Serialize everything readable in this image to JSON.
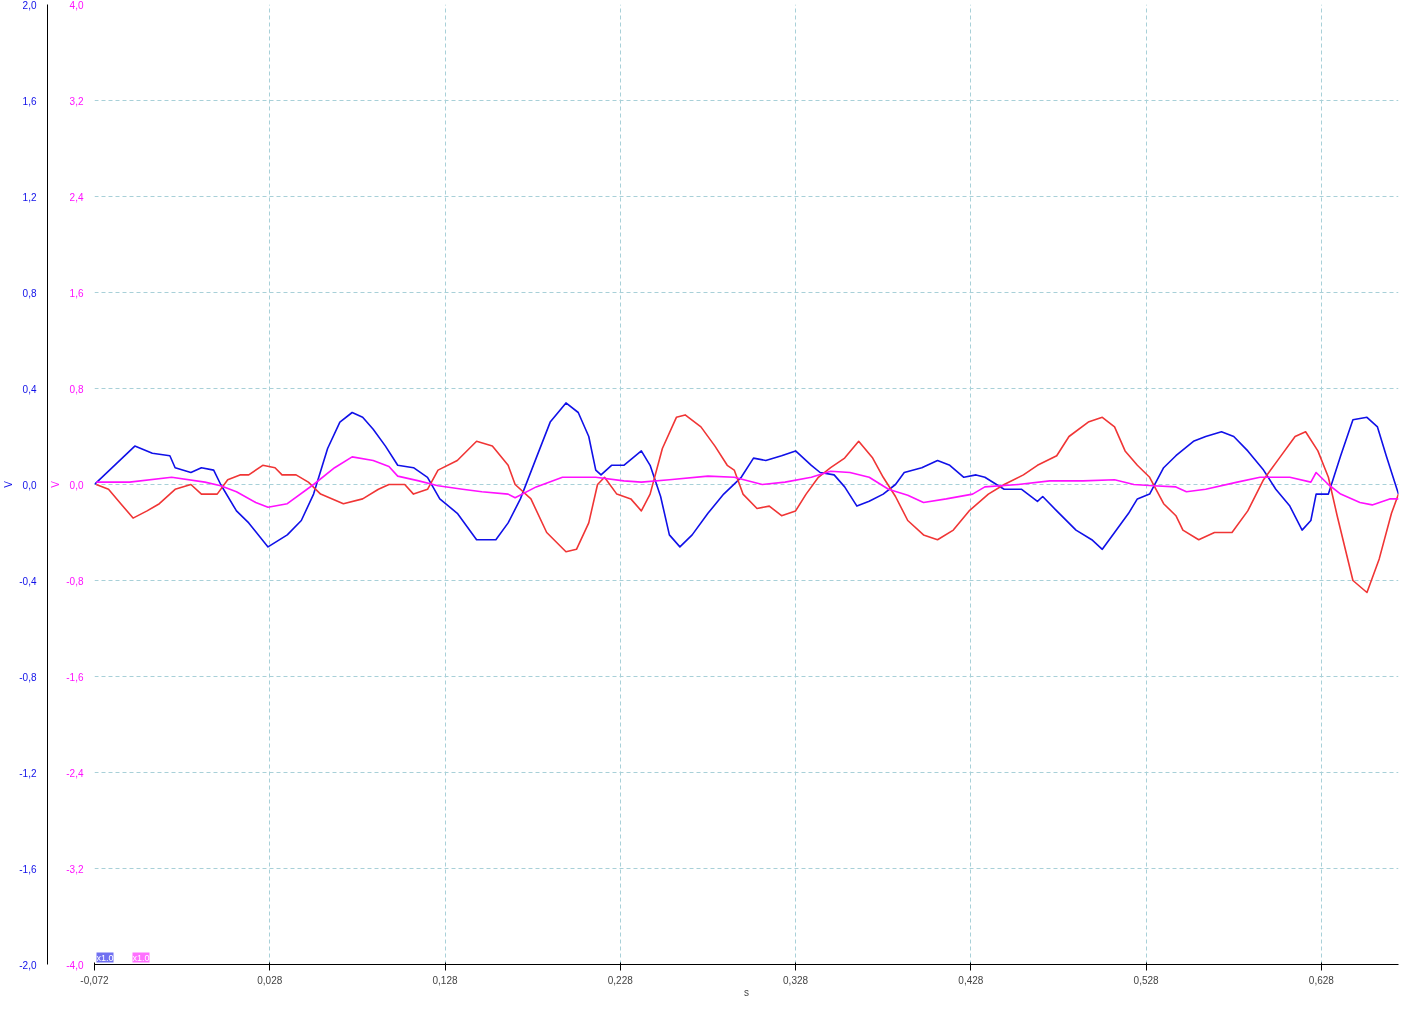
{
  "chart_data": {
    "type": "line",
    "xlabel": "s",
    "ylabel": "V",
    "y2label": "V",
    "grid": true,
    "line_style": "solid",
    "marker": "none",
    "xlim": [
      -0.072,
      0.672
    ],
    "xticks": [
      {
        "value": -0.072,
        "label": "-0,072"
      },
      {
        "value": 0.028,
        "label": "0,028"
      },
      {
        "value": 0.128,
        "label": "0,128"
      },
      {
        "value": 0.228,
        "label": "0,228"
      },
      {
        "value": 0.328,
        "label": "0,328"
      },
      {
        "value": 0.428,
        "label": "0,428"
      },
      {
        "value": 0.528,
        "label": "0,528"
      },
      {
        "value": 0.628,
        "label": "0,628"
      }
    ],
    "ylim": [
      -2.0,
      2.0
    ],
    "yticks": [
      {
        "value": -2.0,
        "label": "-2,0"
      },
      {
        "value": -1.6,
        "label": "-1,6"
      },
      {
        "value": -1.2,
        "label": "-1,2"
      },
      {
        "value": -0.8,
        "label": "-0,8"
      },
      {
        "value": -0.4,
        "label": "-0,4"
      },
      {
        "value": 0.0,
        "label": "0,0"
      },
      {
        "value": 0.4,
        "label": "0,4"
      },
      {
        "value": 0.8,
        "label": "0,8"
      },
      {
        "value": 1.2,
        "label": "1,2"
      },
      {
        "value": 1.6,
        "label": "1,6"
      },
      {
        "value": 2.0,
        "label": "2,0"
      }
    ],
    "y2lim": [
      -4.0,
      4.0
    ],
    "y2ticks": [
      {
        "value": -4.0,
        "label": "-4,0"
      },
      {
        "value": -3.2,
        "label": "-3,2"
      },
      {
        "value": -2.4,
        "label": "-2,4"
      },
      {
        "value": -1.6,
        "label": "-1,6"
      },
      {
        "value": -0.8,
        "label": "-0,8"
      },
      {
        "value": 0.0,
        "label": "0,0"
      },
      {
        "value": 0.8,
        "label": "0,8"
      },
      {
        "value": 1.6,
        "label": "1,6"
      },
      {
        "value": 2.4,
        "label": "2,4"
      },
      {
        "value": 3.2,
        "label": "3,2"
      },
      {
        "value": 4.0,
        "label": "4,0"
      }
    ],
    "annotations": [
      "x1.0",
      "x1.0"
    ],
    "series": [
      {
        "color": "#1010e8",
        "axis": "y",
        "x": [
          -0.072,
          -0.049,
          -0.039,
          -0.029,
          -0.026,
          -0.017,
          -0.011,
          -0.004,
          0.0,
          0.009,
          0.016,
          0.027,
          0.038,
          0.046,
          0.053,
          0.061,
          0.068,
          0.075,
          0.081,
          0.087,
          0.094,
          0.101,
          0.11,
          0.118,
          0.125,
          0.135,
          0.146,
          0.157,
          0.164,
          0.171,
          0.18,
          0.188,
          0.197,
          0.204,
          0.21,
          0.214,
          0.217,
          0.223,
          0.23,
          0.24,
          0.245,
          0.251,
          0.256,
          0.262,
          0.269,
          0.278,
          0.287,
          0.297,
          0.304,
          0.311,
          0.32,
          0.328,
          0.337,
          0.342,
          0.35,
          0.356,
          0.363,
          0.37,
          0.378,
          0.385,
          0.39,
          0.4,
          0.409,
          0.416,
          0.424,
          0.431,
          0.436,
          0.447,
          0.457,
          0.466,
          0.469,
          0.477,
          0.488,
          0.497,
          0.503,
          0.51,
          0.518,
          0.523,
          0.53,
          0.538,
          0.545,
          0.555,
          0.562,
          0.571,
          0.578,
          0.586,
          0.595,
          0.602,
          0.61,
          0.617,
          0.622,
          0.625,
          0.632,
          0.639,
          0.646,
          0.654,
          0.66,
          0.665,
          0.672
        ],
        "values": [
          0.0,
          0.16,
          0.13,
          0.12,
          0.07,
          0.05,
          0.07,
          0.06,
          0.0,
          -0.11,
          -0.16,
          -0.26,
          -0.21,
          -0.15,
          -0.04,
          0.15,
          0.26,
          0.3,
          0.28,
          0.23,
          0.16,
          0.08,
          0.07,
          0.03,
          -0.06,
          -0.12,
          -0.23,
          -0.23,
          -0.16,
          -0.06,
          0.11,
          0.26,
          0.34,
          0.3,
          0.2,
          0.06,
          0.04,
          0.08,
          0.08,
          0.14,
          0.08,
          -0.05,
          -0.21,
          -0.26,
          -0.21,
          -0.12,
          -0.04,
          0.03,
          0.11,
          0.1,
          0.12,
          0.14,
          0.08,
          0.05,
          0.04,
          -0.01,
          -0.09,
          -0.07,
          -0.04,
          0.0,
          0.05,
          0.07,
          0.1,
          0.08,
          0.03,
          0.04,
          0.03,
          -0.02,
          -0.02,
          -0.07,
          -0.05,
          -0.11,
          -0.19,
          -0.23,
          -0.27,
          -0.2,
          -0.12,
          -0.06,
          -0.04,
          0.07,
          0.12,
          0.18,
          0.2,
          0.22,
          0.2,
          0.14,
          0.06,
          -0.02,
          -0.09,
          -0.19,
          -0.15,
          -0.04,
          -0.04,
          0.12,
          0.27,
          0.28,
          0.24,
          0.12,
          -0.04
        ]
      },
      {
        "color": "#f03535",
        "axis": "y",
        "x": [
          -0.071,
          -0.064,
          -0.057,
          -0.05,
          -0.042,
          -0.035,
          -0.026,
          -0.017,
          -0.011,
          -0.002,
          0.004,
          0.011,
          0.016,
          0.024,
          0.031,
          0.035,
          0.043,
          0.05,
          0.057,
          0.07,
          0.081,
          0.09,
          0.096,
          0.105,
          0.11,
          0.118,
          0.124,
          0.135,
          0.146,
          0.155,
          0.164,
          0.168,
          0.177,
          0.186,
          0.197,
          0.203,
          0.21,
          0.215,
          0.219,
          0.226,
          0.234,
          0.24,
          0.245,
          0.252,
          0.26,
          0.265,
          0.274,
          0.282,
          0.289,
          0.293,
          0.298,
          0.306,
          0.313,
          0.32,
          0.328,
          0.334,
          0.341,
          0.348,
          0.356,
          0.364,
          0.372,
          0.378,
          0.385,
          0.392,
          0.401,
          0.409,
          0.418,
          0.427,
          0.438,
          0.447,
          0.458,
          0.466,
          0.477,
          0.484,
          0.495,
          0.503,
          0.51,
          0.516,
          0.523,
          0.53,
          0.538,
          0.545,
          0.549,
          0.558,
          0.567,
          0.577,
          0.586,
          0.595,
          0.604,
          0.613,
          0.619,
          0.626,
          0.632,
          0.637,
          0.646,
          0.654,
          0.661,
          0.668,
          0.672
        ],
        "values": [
          0.0,
          -0.02,
          -0.08,
          -0.14,
          -0.11,
          -0.08,
          -0.02,
          0.0,
          -0.04,
          -0.04,
          0.02,
          0.04,
          0.04,
          0.08,
          0.07,
          0.04,
          0.04,
          0.01,
          -0.04,
          -0.08,
          -0.06,
          -0.02,
          0.0,
          0.0,
          -0.04,
          -0.02,
          0.06,
          0.1,
          0.18,
          0.16,
          0.08,
          0.0,
          -0.06,
          -0.2,
          -0.28,
          -0.27,
          -0.16,
          0.0,
          0.03,
          -0.04,
          -0.06,
          -0.11,
          -0.04,
          0.15,
          0.28,
          0.29,
          0.24,
          0.16,
          0.08,
          0.06,
          -0.04,
          -0.1,
          -0.09,
          -0.13,
          -0.11,
          -0.04,
          0.03,
          0.07,
          0.11,
          0.18,
          0.11,
          0.03,
          -0.05,
          -0.15,
          -0.21,
          -0.23,
          -0.19,
          -0.11,
          -0.04,
          0.0,
          0.04,
          0.08,
          0.12,
          0.2,
          0.26,
          0.28,
          0.24,
          0.14,
          0.08,
          0.03,
          -0.08,
          -0.13,
          -0.19,
          -0.23,
          -0.2,
          -0.2,
          -0.11,
          0.02,
          0.11,
          0.2,
          0.22,
          0.14,
          0.03,
          -0.13,
          -0.4,
          -0.45,
          -0.31,
          -0.12,
          -0.04
        ]
      },
      {
        "color": "#ff10ff",
        "axis": "y2",
        "x": [
          -0.071,
          -0.052,
          -0.028,
          -0.009,
          0.0,
          0.009,
          0.02,
          0.027,
          0.038,
          0.053,
          0.065,
          0.075,
          0.087,
          0.096,
          0.101,
          0.113,
          0.124,
          0.138,
          0.149,
          0.164,
          0.168,
          0.18,
          0.195,
          0.214,
          0.23,
          0.24,
          0.256,
          0.278,
          0.293,
          0.309,
          0.322,
          0.337,
          0.348,
          0.359,
          0.37,
          0.381,
          0.392,
          0.401,
          0.414,
          0.429,
          0.436,
          0.455,
          0.473,
          0.492,
          0.51,
          0.521,
          0.532,
          0.545,
          0.551,
          0.562,
          0.58,
          0.593,
          0.61,
          0.622,
          0.625,
          0.632,
          0.639,
          0.65,
          0.657,
          0.667,
          0.672
        ],
        "values": [
          0.02,
          0.02,
          0.06,
          0.02,
          -0.01,
          -0.06,
          -0.15,
          -0.19,
          -0.16,
          0.0,
          0.14,
          0.23,
          0.2,
          0.15,
          0.07,
          0.03,
          -0.01,
          -0.04,
          -0.06,
          -0.08,
          -0.11,
          -0.02,
          0.06,
          0.06,
          0.03,
          0.02,
          0.04,
          0.07,
          0.06,
          0.0,
          0.02,
          0.06,
          0.11,
          0.1,
          0.06,
          -0.04,
          -0.09,
          -0.15,
          -0.12,
          -0.08,
          -0.02,
          0.0,
          0.03,
          0.03,
          0.04,
          0.0,
          -0.01,
          -0.02,
          -0.06,
          -0.04,
          0.02,
          0.06,
          0.06,
          0.02,
          0.1,
          0.0,
          -0.08,
          -0.15,
          -0.17,
          -0.12,
          -0.12
        ]
      }
    ]
  }
}
